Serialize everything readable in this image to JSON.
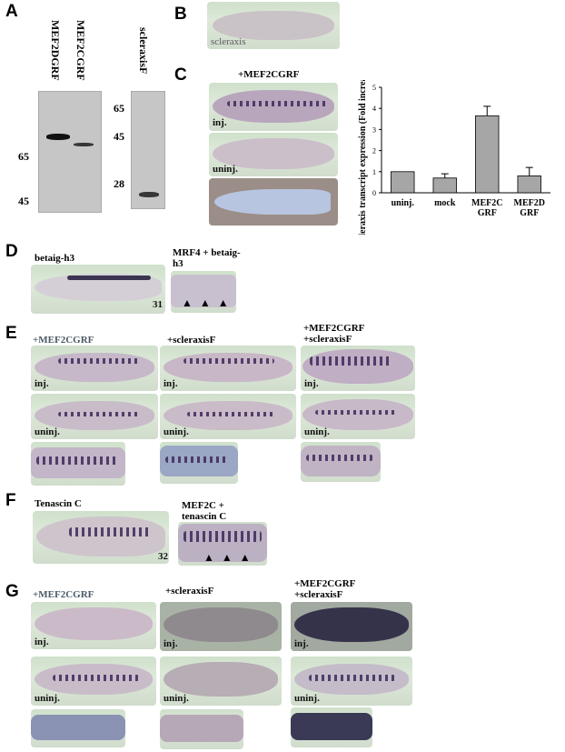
{
  "panels": {
    "A": {
      "label": "A",
      "lanes": [
        "MEF2DGRF",
        "MEF2CGRF"
      ],
      "lane_right": "scleraxisF",
      "mw_left": [
        "65",
        "45"
      ],
      "mw_right": [
        "65",
        "45",
        "28"
      ]
    },
    "B": {
      "label": "B",
      "caption": "scleraxis"
    },
    "C": {
      "label": "C",
      "title": "+MEF2CGRF",
      "photo_labels": [
        "inj.",
        "uninj."
      ]
    },
    "D": {
      "label": "D",
      "left_title": "betaig-h3",
      "right_title": "MRF4 + betaig-h3",
      "stage": "31"
    },
    "E": {
      "label": "E",
      "col_titles": [
        "+MEF2CGRF",
        "+scleraxisF",
        "+MEF2CGRF +scleraxisF"
      ],
      "row_labels": [
        "inj.",
        "uninj."
      ]
    },
    "F": {
      "label": "F",
      "left_title": "Tenascin C",
      "right_title": "MEF2C + tenascin C",
      "stage": "32"
    },
    "G": {
      "label": "G",
      "col_titles": [
        "+MEF2CGRF",
        "+scleraxisF",
        "+MEF2CGRF +scleraxisF"
      ],
      "row_labels": [
        "inj.",
        "uninj."
      ]
    }
  },
  "chart_data": {
    "type": "bar",
    "categories": [
      "uninj.",
      "mock",
      "MEF2C GRF",
      "MEF2D GRF"
    ],
    "values": [
      1.0,
      0.7,
      3.65,
      0.8
    ],
    "errors": [
      0,
      0.2,
      0.45,
      0.4
    ],
    "ylabel": "Xscleraxis transcript expression (Fold increase)",
    "yticks": [
      "0",
      "1",
      "2",
      "3",
      "4",
      "5"
    ],
    "ylim": [
      0,
      5
    ],
    "bar_color": "#a6a6a6"
  }
}
